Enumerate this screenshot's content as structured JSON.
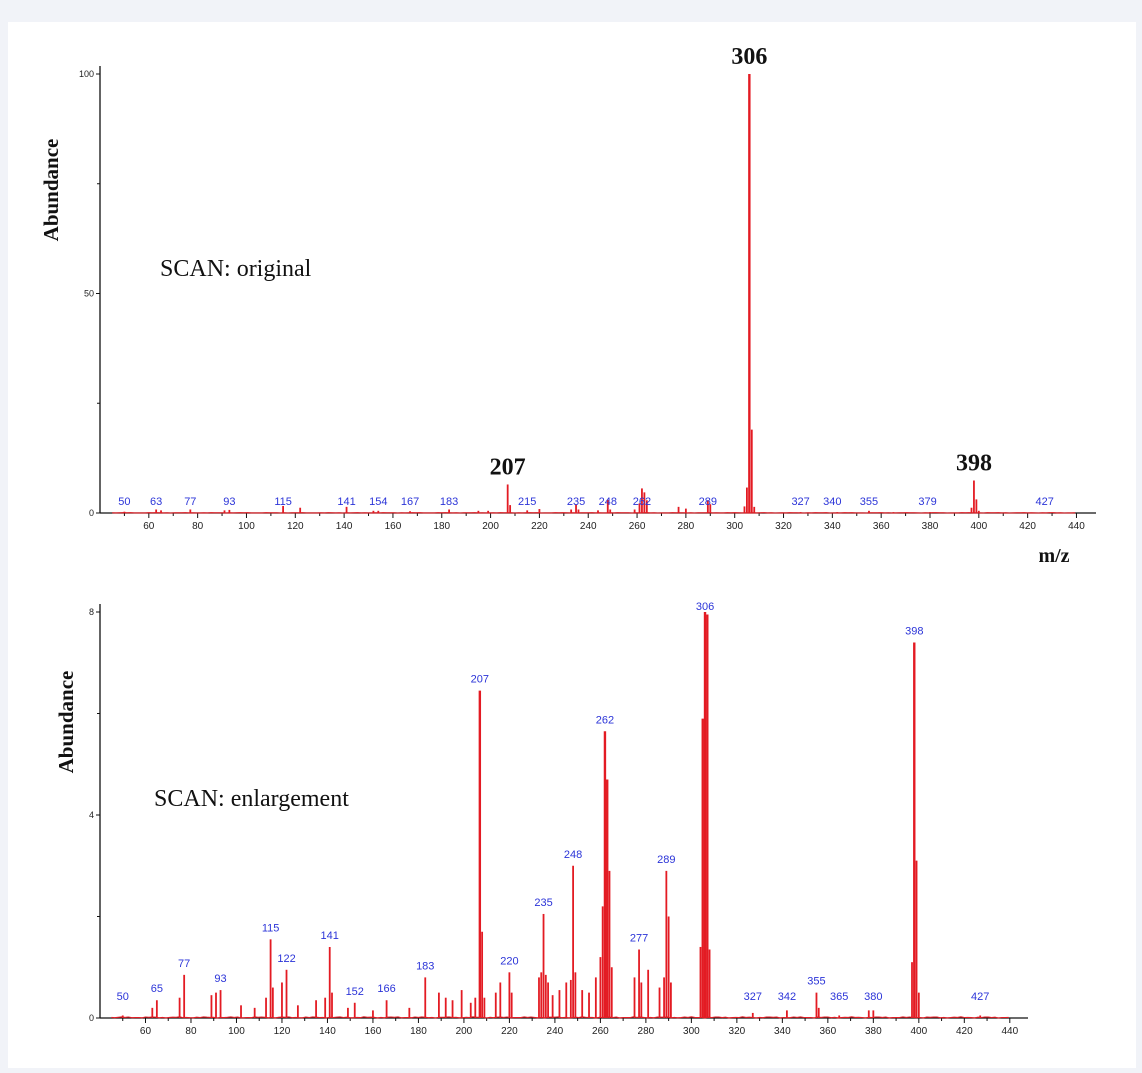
{
  "chart_data": [
    {
      "type": "bar",
      "annotation": "SCAN: original",
      "ylabel": "Abundance",
      "xlabel": "m/z",
      "xlim": [
        40,
        448
      ],
      "ylim": [
        0,
        100
      ],
      "xticks": [
        60,
        80,
        100,
        120,
        140,
        160,
        180,
        200,
        220,
        240,
        260,
        280,
        300,
        320,
        340,
        360,
        380,
        400,
        420,
        440
      ],
      "yticks": [
        0,
        50,
        100
      ],
      "large_peak_labels": [
        {
          "mz": 306,
          "label": "306"
        },
        {
          "mz": 207,
          "label": "207"
        },
        {
          "mz": 398,
          "label": "398"
        }
      ],
      "small_peak_labels": [
        {
          "mz": 50,
          "label": "50"
        },
        {
          "mz": 63,
          "label": "63"
        },
        {
          "mz": 77,
          "label": "77"
        },
        {
          "mz": 93,
          "label": "93"
        },
        {
          "mz": 115,
          "label": "115"
        },
        {
          "mz": 141,
          "label": "141"
        },
        {
          "mz": 154,
          "label": "154"
        },
        {
          "mz": 167,
          "label": "167"
        },
        {
          "mz": 183,
          "label": "183"
        },
        {
          "mz": 215,
          "label": "215"
        },
        {
          "mz": 235,
          "label": "235"
        },
        {
          "mz": 248,
          "label": "248"
        },
        {
          "mz": 262,
          "label": "262"
        },
        {
          "mz": 289,
          "label": "289"
        },
        {
          "mz": 327,
          "label": "327"
        },
        {
          "mz": 340,
          "label": "340"
        },
        {
          "mz": 355,
          "label": "355"
        },
        {
          "mz": 379,
          "label": "379"
        },
        {
          "mz": 427,
          "label": "427"
        }
      ],
      "peaks": [
        {
          "mz": 50,
          "y": 0.3
        },
        {
          "mz": 63,
          "y": 0.8
        },
        {
          "mz": 65,
          "y": 0.6
        },
        {
          "mz": 77,
          "y": 0.8
        },
        {
          "mz": 91,
          "y": 0.6
        },
        {
          "mz": 93,
          "y": 0.7
        },
        {
          "mz": 115,
          "y": 1.6
        },
        {
          "mz": 122,
          "y": 1.2
        },
        {
          "mz": 141,
          "y": 1.4
        },
        {
          "mz": 152,
          "y": 0.5
        },
        {
          "mz": 154,
          "y": 0.5
        },
        {
          "mz": 167,
          "y": 0.4
        },
        {
          "mz": 183,
          "y": 0.8
        },
        {
          "mz": 195,
          "y": 0.5
        },
        {
          "mz": 199,
          "y": 0.5
        },
        {
          "mz": 207,
          "y": 6.5
        },
        {
          "mz": 208,
          "y": 1.8
        },
        {
          "mz": 215,
          "y": 0.6
        },
        {
          "mz": 220,
          "y": 0.9
        },
        {
          "mz": 233,
          "y": 0.8
        },
        {
          "mz": 235,
          "y": 2.0
        },
        {
          "mz": 236,
          "y": 0.8
        },
        {
          "mz": 244,
          "y": 0.6
        },
        {
          "mz": 248,
          "y": 3.0
        },
        {
          "mz": 249,
          "y": 0.8
        },
        {
          "mz": 259,
          "y": 0.8
        },
        {
          "mz": 261,
          "y": 2.2
        },
        {
          "mz": 262,
          "y": 5.6
        },
        {
          "mz": 263,
          "y": 4.7
        },
        {
          "mz": 264,
          "y": 2.9
        },
        {
          "mz": 277,
          "y": 1.4
        },
        {
          "mz": 280,
          "y": 1.0
        },
        {
          "mz": 289,
          "y": 2.9
        },
        {
          "mz": 290,
          "y": 2.0
        },
        {
          "mz": 304,
          "y": 1.5
        },
        {
          "mz": 305,
          "y": 5.8
        },
        {
          "mz": 306,
          "y": 100
        },
        {
          "mz": 307,
          "y": 19
        },
        {
          "mz": 308,
          "y": 1.4
        },
        {
          "mz": 327,
          "y": 0.2
        },
        {
          "mz": 342,
          "y": 0.2
        },
        {
          "mz": 355,
          "y": 0.5
        },
        {
          "mz": 365,
          "y": 0.2
        },
        {
          "mz": 380,
          "y": 0.2
        },
        {
          "mz": 397,
          "y": 1.2
        },
        {
          "mz": 398,
          "y": 7.4
        },
        {
          "mz": 399,
          "y": 3.1
        },
        {
          "mz": 400,
          "y": 0.5
        },
        {
          "mz": 427,
          "y": 0.1
        }
      ]
    },
    {
      "type": "bar",
      "annotation": "SCAN: enlargement",
      "ylabel": "Abundance",
      "xlabel": "",
      "xlim": [
        40,
        448
      ],
      "ylim": [
        0,
        8
      ],
      "xticks": [
        60,
        80,
        100,
        120,
        140,
        160,
        180,
        200,
        220,
        240,
        260,
        280,
        300,
        320,
        340,
        360,
        380,
        400,
        420,
        440
      ],
      "yticks": [
        0,
        4,
        8
      ],
      "peak_labels": [
        {
          "mz": 50,
          "label": "50"
        },
        {
          "mz": 65,
          "label": "65"
        },
        {
          "mz": 77,
          "label": "77"
        },
        {
          "mz": 93,
          "label": "93"
        },
        {
          "mz": 115,
          "label": "115"
        },
        {
          "mz": 122,
          "label": "122"
        },
        {
          "mz": 141,
          "label": "141"
        },
        {
          "mz": 152,
          "label": "152"
        },
        {
          "mz": 166,
          "label": "166"
        },
        {
          "mz": 183,
          "label": "183"
        },
        {
          "mz": 207,
          "label": "207"
        },
        {
          "mz": 220,
          "label": "220"
        },
        {
          "mz": 235,
          "label": "235"
        },
        {
          "mz": 248,
          "label": "248"
        },
        {
          "mz": 262,
          "label": "262"
        },
        {
          "mz": 277,
          "label": "277"
        },
        {
          "mz": 289,
          "label": "289"
        },
        {
          "mz": 306,
          "label": "306"
        },
        {
          "mz": 327,
          "label": "327"
        },
        {
          "mz": 342,
          "label": "342"
        },
        {
          "mz": 355,
          "label": "355"
        },
        {
          "mz": 365,
          "label": "365"
        },
        {
          "mz": 380,
          "label": "380"
        },
        {
          "mz": 398,
          "label": "398"
        },
        {
          "mz": 427,
          "label": "427"
        }
      ],
      "peaks": [
        {
          "mz": 50,
          "y": 0.05
        },
        {
          "mz": 63,
          "y": 0.2
        },
        {
          "mz": 65,
          "y": 0.35
        },
        {
          "mz": 75,
          "y": 0.4
        },
        {
          "mz": 77,
          "y": 0.85
        },
        {
          "mz": 89,
          "y": 0.45
        },
        {
          "mz": 91,
          "y": 0.5
        },
        {
          "mz": 93,
          "y": 0.55
        },
        {
          "mz": 102,
          "y": 0.25
        },
        {
          "mz": 108,
          "y": 0.2
        },
        {
          "mz": 113,
          "y": 0.4
        },
        {
          "mz": 115,
          "y": 1.55
        },
        {
          "mz": 116,
          "y": 0.6
        },
        {
          "mz": 120,
          "y": 0.7
        },
        {
          "mz": 122,
          "y": 0.95
        },
        {
          "mz": 127,
          "y": 0.25
        },
        {
          "mz": 135,
          "y": 0.35
        },
        {
          "mz": 139,
          "y": 0.4
        },
        {
          "mz": 141,
          "y": 1.4
        },
        {
          "mz": 142,
          "y": 0.5
        },
        {
          "mz": 149,
          "y": 0.2
        },
        {
          "mz": 152,
          "y": 0.3
        },
        {
          "mz": 160,
          "y": 0.15
        },
        {
          "mz": 166,
          "y": 0.35
        },
        {
          "mz": 176,
          "y": 0.2
        },
        {
          "mz": 183,
          "y": 0.8
        },
        {
          "mz": 189,
          "y": 0.5
        },
        {
          "mz": 192,
          "y": 0.4
        },
        {
          "mz": 195,
          "y": 0.35
        },
        {
          "mz": 199,
          "y": 0.55
        },
        {
          "mz": 203,
          "y": 0.3
        },
        {
          "mz": 205,
          "y": 0.4
        },
        {
          "mz": 207,
          "y": 6.45
        },
        {
          "mz": 208,
          "y": 1.7
        },
        {
          "mz": 209,
          "y": 0.4
        },
        {
          "mz": 214,
          "y": 0.5
        },
        {
          "mz": 216,
          "y": 0.7
        },
        {
          "mz": 220,
          "y": 0.9
        },
        {
          "mz": 221,
          "y": 0.5
        },
        {
          "mz": 233,
          "y": 0.8
        },
        {
          "mz": 234,
          "y": 0.9
        },
        {
          "mz": 235,
          "y": 2.05
        },
        {
          "mz": 236,
          "y": 0.85
        },
        {
          "mz": 237,
          "y": 0.7
        },
        {
          "mz": 239,
          "y": 0.45
        },
        {
          "mz": 242,
          "y": 0.55
        },
        {
          "mz": 245,
          "y": 0.7
        },
        {
          "mz": 247,
          "y": 0.75
        },
        {
          "mz": 248,
          "y": 3.0
        },
        {
          "mz": 249,
          "y": 0.9
        },
        {
          "mz": 252,
          "y": 0.55
        },
        {
          "mz": 255,
          "y": 0.5
        },
        {
          "mz": 258,
          "y": 0.8
        },
        {
          "mz": 260,
          "y": 1.2
        },
        {
          "mz": 261,
          "y": 2.2
        },
        {
          "mz": 262,
          "y": 5.65
        },
        {
          "mz": 263,
          "y": 4.7
        },
        {
          "mz": 264,
          "y": 2.9
        },
        {
          "mz": 265,
          "y": 1.0
        },
        {
          "mz": 275,
          "y": 0.8
        },
        {
          "mz": 277,
          "y": 1.35
        },
        {
          "mz": 278,
          "y": 0.7
        },
        {
          "mz": 281,
          "y": 0.95
        },
        {
          "mz": 286,
          "y": 0.6
        },
        {
          "mz": 288,
          "y": 0.8
        },
        {
          "mz": 289,
          "y": 2.9
        },
        {
          "mz": 290,
          "y": 2.0
        },
        {
          "mz": 291,
          "y": 0.7
        },
        {
          "mz": 304,
          "y": 1.4
        },
        {
          "mz": 305,
          "y": 5.9
        },
        {
          "mz": 306,
          "y": 8.0
        },
        {
          "mz": 307,
          "y": 7.95
        },
        {
          "mz": 308,
          "y": 1.35
        },
        {
          "mz": 327,
          "y": 0.1
        },
        {
          "mz": 342,
          "y": 0.15
        },
        {
          "mz": 355,
          "y": 0.5
        },
        {
          "mz": 356,
          "y": 0.2
        },
        {
          "mz": 365,
          "y": 0.05
        },
        {
          "mz": 378,
          "y": 0.15
        },
        {
          "mz": 380,
          "y": 0.15
        },
        {
          "mz": 397,
          "y": 1.1
        },
        {
          "mz": 398,
          "y": 7.4
        },
        {
          "mz": 399,
          "y": 3.1
        },
        {
          "mz": 400,
          "y": 0.5
        },
        {
          "mz": 427,
          "y": 0.05
        }
      ]
    }
  ],
  "colors": {
    "peak": "#e31b23",
    "peak_label": "#2b34d8",
    "axis": "#111111",
    "background": "#ffffff",
    "page_background": "#f1f3f8"
  }
}
